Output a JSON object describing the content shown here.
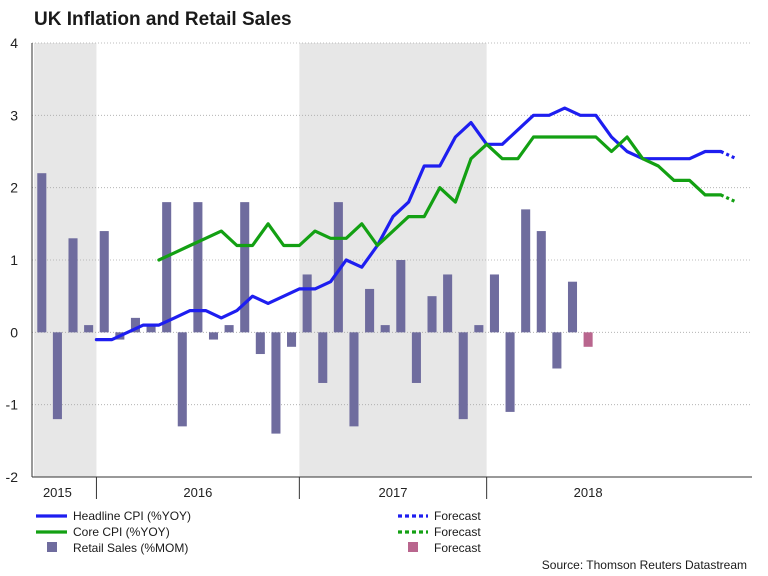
{
  "chart_data": {
    "type": "bar+line",
    "title": "UK Inflation and Retail Sales",
    "ylim": [
      -2,
      4
    ],
    "yticks": [
      -2,
      -1,
      0,
      1,
      2,
      3,
      4
    ],
    "grid": true,
    "n_months": 46,
    "shaded_periods": [
      [
        0,
        4
      ],
      [
        17,
        29
      ]
    ],
    "year_labels": [
      {
        "label": "2015",
        "center": 1.5
      },
      {
        "label": "2016",
        "center": 10.5
      },
      {
        "label": "2017",
        "center": 23
      },
      {
        "label": "2018",
        "center": 35.5
      }
    ],
    "year_separators": [
      4,
      17,
      29
    ],
    "series": [
      {
        "name": "Headline CPI (%YOY)",
        "type": "line",
        "color": "#1e1ef0",
        "values": [
          -0.1,
          -0.1,
          0.0,
          0.1,
          0.1,
          0.2,
          0.3,
          0.3,
          0.2,
          0.3,
          0.5,
          0.4,
          0.5,
          0.6,
          0.6,
          0.7,
          1.0,
          0.9,
          1.2,
          1.6,
          1.8,
          2.3,
          2.3,
          2.7,
          2.9,
          2.6,
          2.6,
          2.8,
          3.0,
          3.0,
          3.1,
          3.0,
          3.0,
          2.7,
          2.5,
          2.4,
          2.4,
          2.4,
          2.4,
          2.5,
          2.5
        ]
      },
      {
        "name": "Core CPI (%YOY)",
        "type": "line",
        "color": "#13a013",
        "values": [
          1.0,
          1.1,
          1.2,
          1.3,
          1.4,
          1.2,
          1.2,
          1.5,
          1.2,
          1.2,
          1.4,
          1.3,
          1.3,
          1.5,
          1.2,
          1.4,
          1.6,
          1.6,
          2.0,
          1.8,
          2.4,
          2.6,
          2.4,
          2.4,
          2.7,
          2.7,
          2.7,
          2.7,
          2.7,
          2.5,
          2.7,
          2.4,
          2.3,
          2.1,
          2.1,
          1.9,
          1.9
        ]
      },
      {
        "name": "Retail Sales (%MOM)",
        "type": "bar",
        "color": "#6f6c9e",
        "values": [
          2.2,
          -1.2,
          1.3,
          0.1,
          1.4,
          -0.1,
          0.2,
          0.1,
          1.8,
          -1.3,
          1.8,
          -0.1,
          0.1,
          1.8,
          -0.3,
          -1.4,
          -0.2,
          0.8,
          -0.7,
          1.8,
          -1.3,
          0.6,
          0.1,
          1.0,
          -0.7,
          0.5,
          0.8,
          -1.2,
          0.1,
          0.8,
          -1.1,
          1.7,
          1.4,
          -0.5,
          0.7
        ]
      }
    ],
    "forecast": {
      "headline_cpi": {
        "label": "Forecast",
        "color": "#1e1ef0",
        "values": [
          2.5,
          2.4
        ]
      },
      "core_cpi": {
        "label": "Forecast",
        "color": "#13a013",
        "values": [
          1.9,
          1.8
        ]
      },
      "retail_sales": {
        "label": "Forecast",
        "color": "#b9668e",
        "values": [
          -0.2
        ]
      }
    },
    "source": "Source: Thomson Reuters Datastream"
  }
}
